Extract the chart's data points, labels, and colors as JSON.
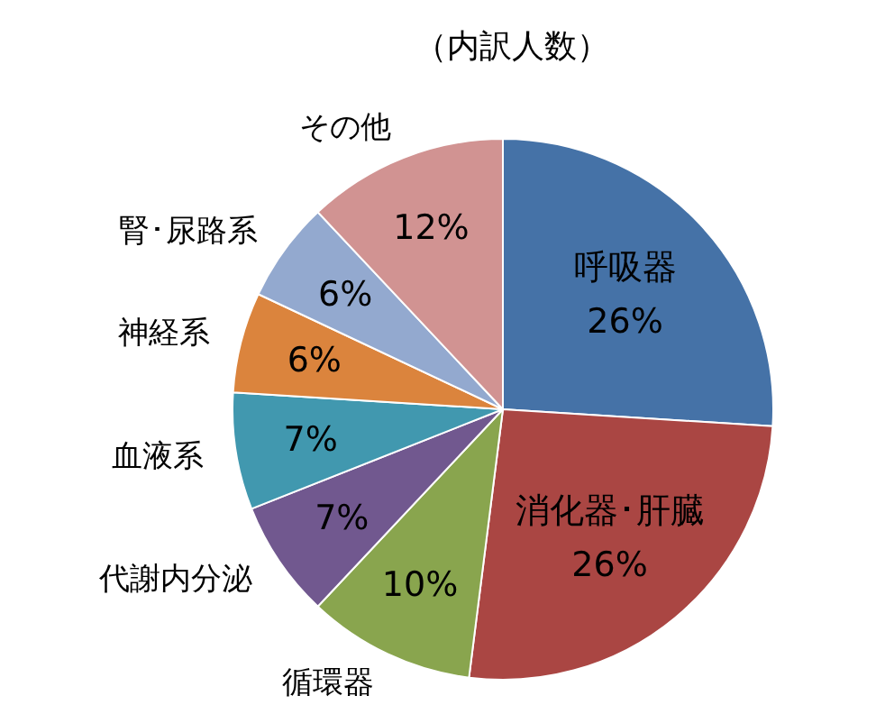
{
  "chart_data": {
    "type": "pie",
    "title": "（内訳人数）",
    "categories": [
      "呼吸器",
      "消化器･肝臓",
      "循環器",
      "代謝内分泌",
      "血液系",
      "神経系",
      "腎･尿路系",
      "その他"
    ],
    "values": [
      26,
      26,
      10,
      7,
      7,
      6,
      6,
      12
    ],
    "value_labels": [
      "26%",
      "26%",
      "10%",
      "7%",
      "7%",
      "6%",
      "6%",
      "12%"
    ],
    "colors": [
      "#4572a7",
      "#aa4643",
      "#89a54e",
      "#71588f",
      "#4198af",
      "#db843d",
      "#93a9cf",
      "#d19392"
    ],
    "legend": false
  }
}
